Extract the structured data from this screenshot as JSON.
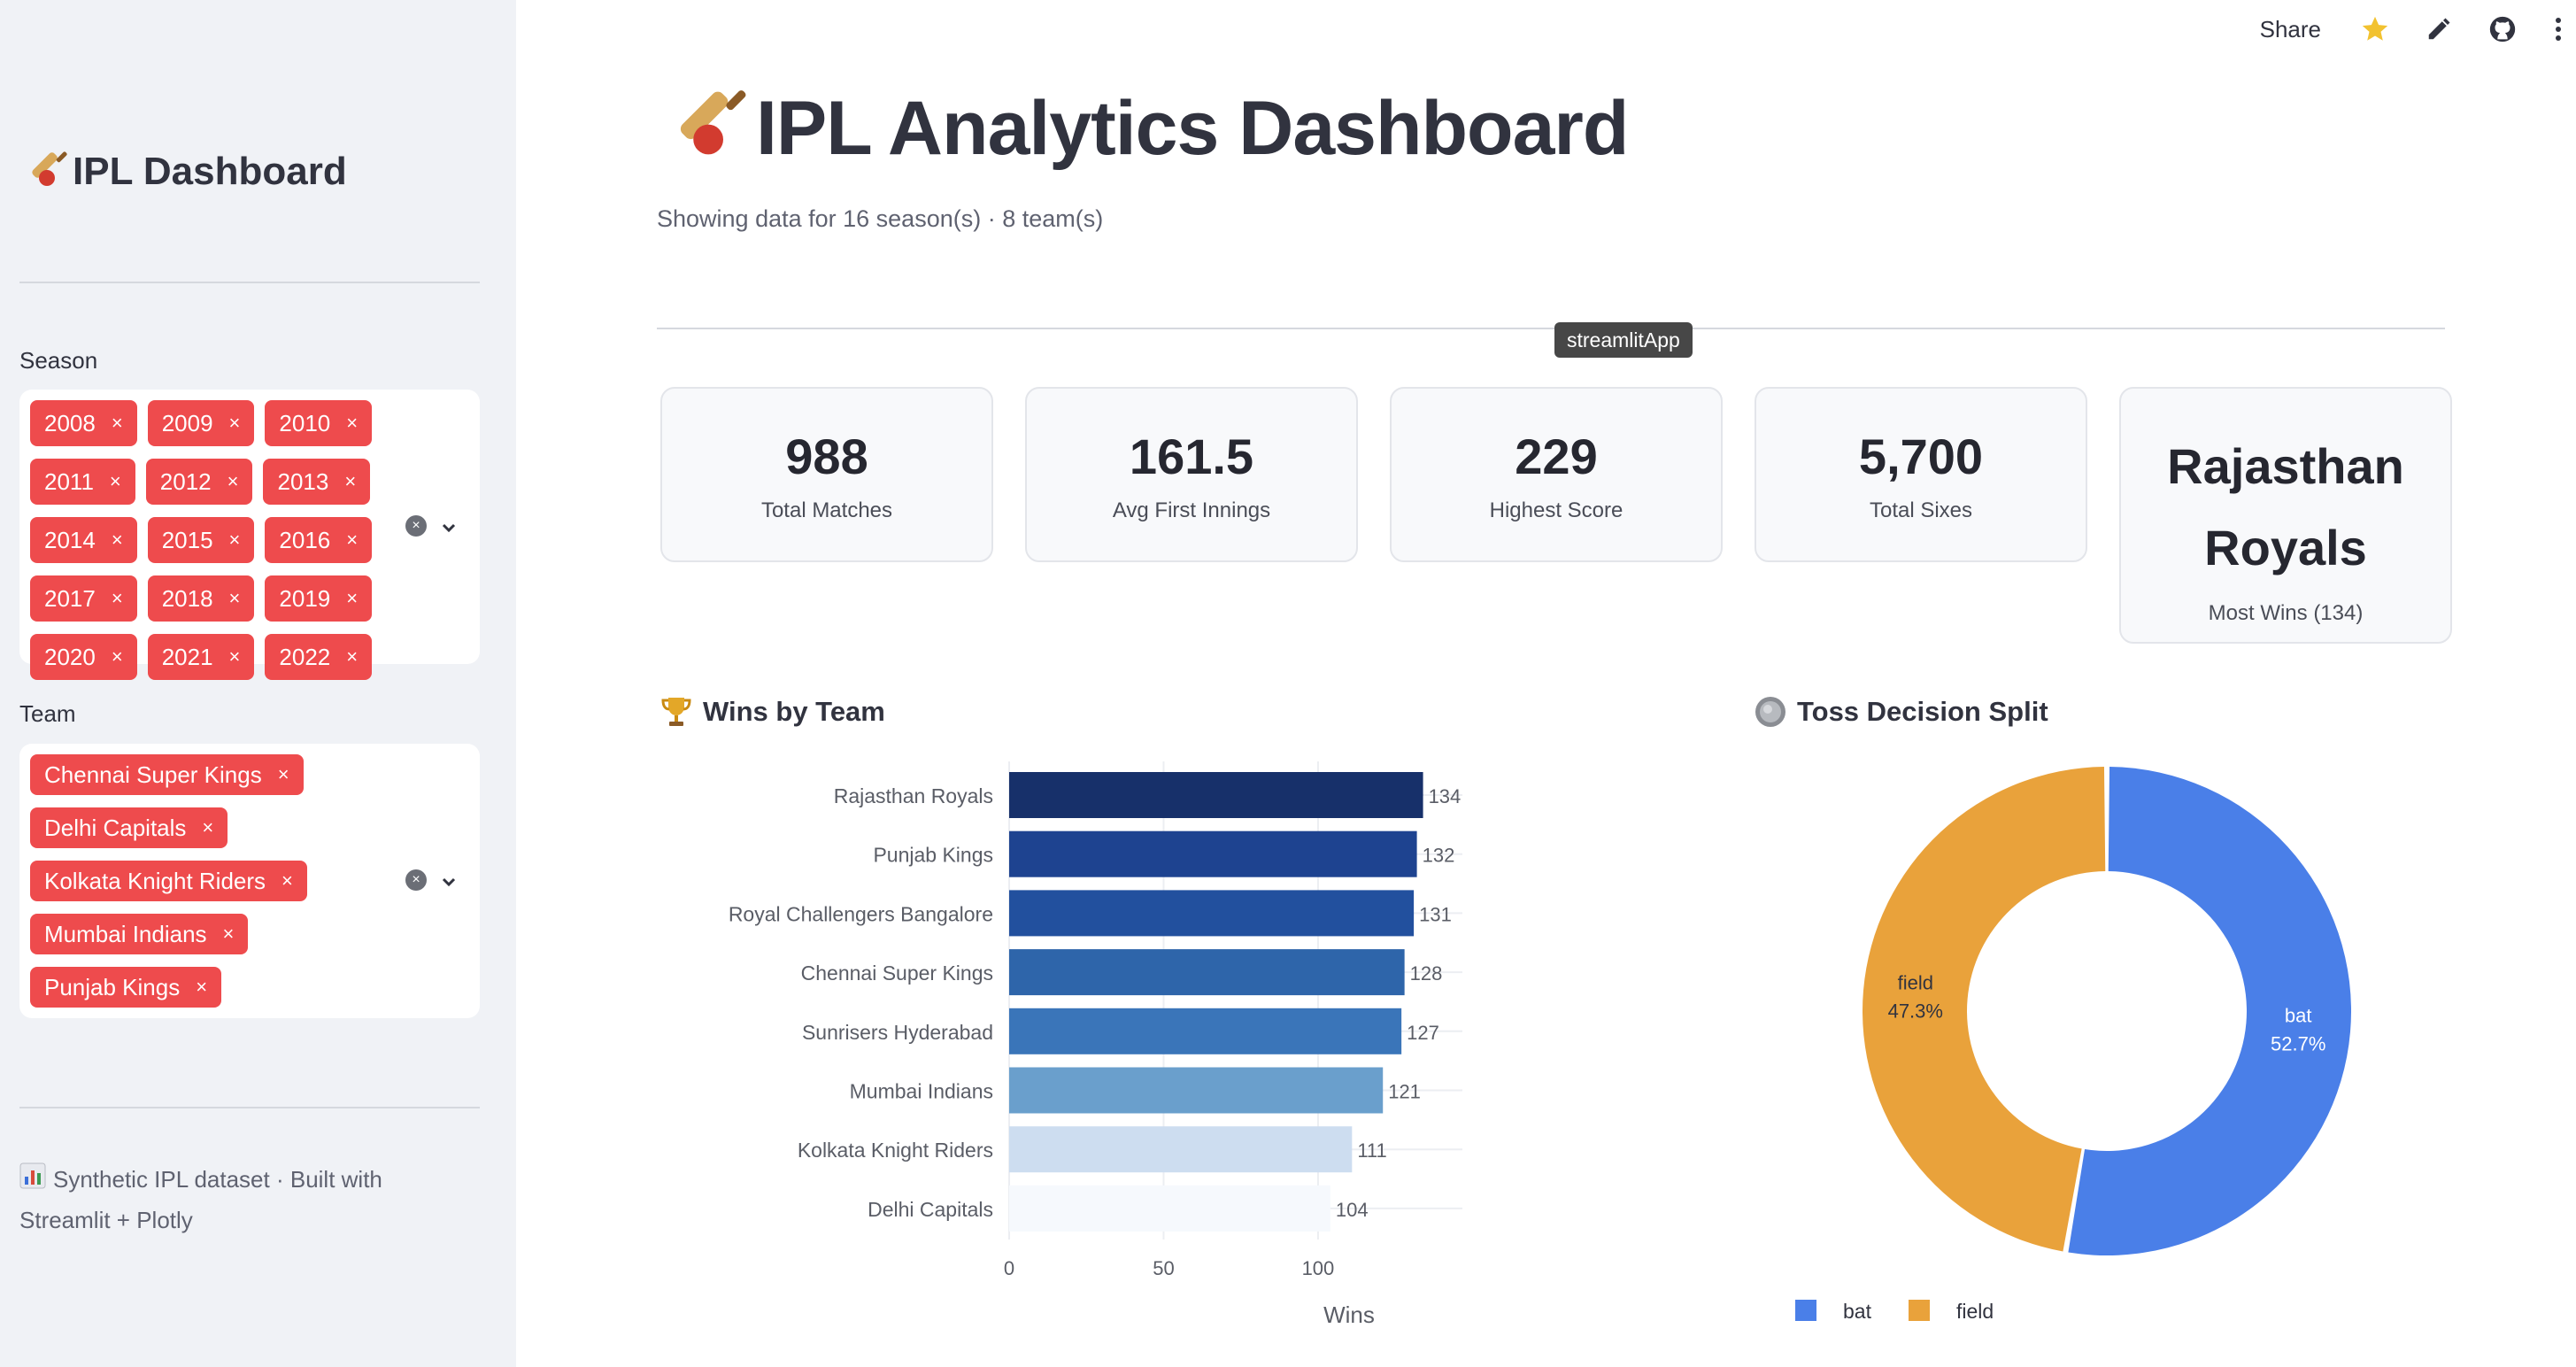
{
  "sidebar": {
    "title": "IPL Dashboard",
    "season_label": "Season",
    "seasons": [
      "2008",
      "2009",
      "2010",
      "2011",
      "2012",
      "2013",
      "2014",
      "2015",
      "2016",
      "2017",
      "2018",
      "2019",
      "2020",
      "2021",
      "2022"
    ],
    "team_label": "Team",
    "teams": [
      "Chennai Super Kings",
      "Delhi Capitals",
      "Kolkata Knight Riders",
      "Mumbai Indians",
      "Punjab Kings"
    ],
    "remove_glyph": "×",
    "clear_glyph": "×",
    "footer": "Synthetic IPL dataset · Built with Streamlit + Plotly"
  },
  "toolbar": {
    "share_label": "Share",
    "icons": [
      "star-icon",
      "edit-icon",
      "github-icon",
      "more-vertical-icon"
    ]
  },
  "main": {
    "title": "IPL Analytics Dashboard",
    "caption": "Showing data for 16 season(s) · 8 team(s)",
    "tooltip": "streamlitApp",
    "metrics": [
      {
        "value": "988",
        "label": "Total Matches"
      },
      {
        "value": "161.5",
        "label": "Avg First Innings"
      },
      {
        "value": "229",
        "label": "Highest Score"
      },
      {
        "value": "5,700",
        "label": "Total Sixes"
      },
      {
        "value": "Rajasthan Royals",
        "label": "Most Wins (134)"
      }
    ],
    "wins_title": "Wins by Team",
    "toss_title": "Toss Decision Split"
  },
  "colors": {
    "tag_red": "#ee4b4d",
    "sidebar_bg": "#f0f2f6",
    "bat": "#4a7fe8",
    "field": "#e9a23b"
  },
  "chart_data": [
    {
      "type": "bar",
      "orientation": "horizontal",
      "title": "Wins by Team",
      "categories": [
        "Rajasthan Royals",
        "Punjab Kings",
        "Royal Challengers Bangalore",
        "Chennai Super Kings",
        "Sunrisers Hyderabad",
        "Mumbai Indians",
        "Kolkata Knight Riders",
        "Delhi Capitals"
      ],
      "values": [
        134,
        132,
        131,
        128,
        127,
        121,
        111,
        104
      ],
      "colors": [
        "#17306a",
        "#1e4390",
        "#22509e",
        "#2e65aa",
        "#3a75b9",
        "#6a9fcc",
        "#cdddf0",
        "#f6f9fd"
      ],
      "xlabel": "Wins",
      "ylabel": "",
      "xticks": [
        0,
        50,
        100
      ],
      "xlim": [
        0,
        141
      ],
      "grid": true
    },
    {
      "type": "pie",
      "hole": true,
      "title": "Toss Decision Split",
      "labels": [
        "bat",
        "field"
      ],
      "values": [
        52.7,
        47.3
      ],
      "value_labels": [
        "52.7%",
        "47.3%"
      ],
      "colors": [
        "#4a7fe8",
        "#e9a23b"
      ],
      "legend": "bottom"
    }
  ]
}
